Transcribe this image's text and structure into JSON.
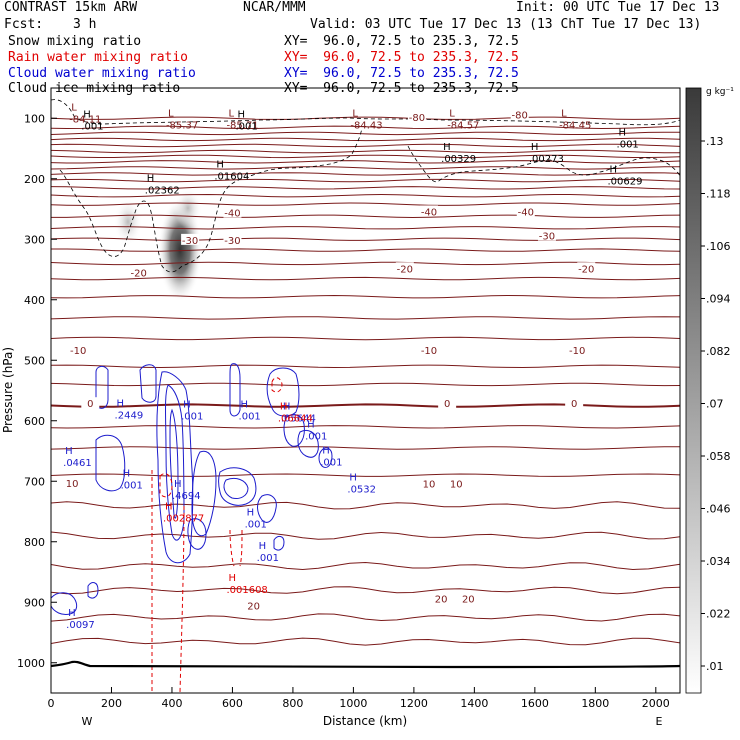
{
  "header": {
    "left_title": "CONTRAST 15km ARW",
    "center_title": "NCAR/MMM",
    "init": "Init: 00 UTC Tue 17 Dec 13",
    "fcst_label": "Fcst:",
    "fcst_value": "3 h",
    "valid": "Valid: 03 UTC Tue 17 Dec 13 (13 ChT Tue 17 Dec 13)",
    "fields": [
      {
        "name": "Snow mixing ratio",
        "xy": "XY=  96.0, 72.5 to 235.3, 72.5",
        "color": "#000000"
      },
      {
        "name": "Rain water mixing ratio",
        "xy": "XY=  96.0, 72.5 to 235.3, 72.5",
        "color": "#e00000"
      },
      {
        "name": "Cloud water mixing ratio",
        "xy": "XY=  96.0, 72.5 to 235.3, 72.5",
        "color": "#0000d0"
      },
      {
        "name": "Cloud ice mixing ratio",
        "xy": "XY=  96.0, 72.5 to 235.3, 72.5",
        "color": "#000000"
      }
    ]
  },
  "chart_data": {
    "type": "contour",
    "xlabel": "Distance (km)",
    "ylabel": "Pressure (hPa)",
    "xlim": [
      0,
      2080
    ],
    "ylim": [
      1050,
      50
    ],
    "x_ticks": [
      0,
      200,
      400,
      600,
      800,
      1000,
      1200,
      1400,
      1600,
      1800,
      2000
    ],
    "y_ticks": [
      100,
      200,
      300,
      400,
      500,
      600,
      700,
      800,
      900,
      1000
    ],
    "x_end_labels": {
      "left": "W",
      "right": "E"
    },
    "colorbar": {
      "unit": "g kg⁻¹",
      "ticks": [
        ".13",
        ".118",
        ".106",
        ".094",
        ".082",
        ".07",
        ".058",
        ".046",
        ".034",
        ".022",
        ".01"
      ]
    },
    "temperature_contours": [
      {
        "label": "-80",
        "positions": [
          [
            1210,
            98
          ],
          [
            1550,
            94
          ]
        ]
      },
      {
        "label": "-40",
        "positions": [
          [
            600,
            256
          ],
          [
            1250,
            254
          ],
          [
            1570,
            254
          ]
        ]
      },
      {
        "label": "-30",
        "positions": [
          [
            460,
            301
          ],
          [
            600,
            301
          ],
          [
            1640,
            294
          ]
        ]
      },
      {
        "label": "-20",
        "positions": [
          [
            290,
            355
          ],
          [
            1170,
            348
          ],
          [
            1770,
            348
          ]
        ]
      },
      {
        "label": "-10",
        "positions": [
          [
            90,
            483
          ],
          [
            1250,
            483
          ],
          [
            1740,
            483
          ]
        ]
      },
      {
        "label": "0",
        "positions": [
          [
            130,
            571
          ],
          [
            1310,
            571
          ],
          [
            1730,
            571
          ]
        ]
      },
      {
        "label": "10",
        "positions": [
          [
            70,
            703
          ],
          [
            1250,
            704
          ],
          [
            1340,
            704
          ]
        ]
      },
      {
        "label": "20",
        "positions": [
          [
            670,
            905
          ],
          [
            1290,
            894
          ],
          [
            1380,
            894
          ]
        ]
      }
    ],
    "min_labels": [
      {
        "label": "L",
        "value": "-84.11",
        "x": 80,
        "p": 100
      },
      {
        "label": "L",
        "value": "-85.37",
        "x": 400,
        "p": 110
      },
      {
        "label": "L",
        "value": "-85.71",
        "x": 600,
        "p": 110
      },
      {
        "label": "L",
        "value": "-84.43",
        "x": 1010,
        "p": 110
      },
      {
        "label": "L",
        "value": "-84.57",
        "x": 1330,
        "p": 110
      },
      {
        "label": "L",
        "value": "-84.45",
        "x": 1700,
        "p": 110
      }
    ],
    "cloud_ice_max": [
      {
        "label": "H",
        "value": ".001",
        "x": 120,
        "p": 112
      },
      {
        "label": "H",
        "value": ".001",
        "x": 630,
        "p": 112
      },
      {
        "label": "H",
        "value": ".02362",
        "x": 330,
        "p": 218
      },
      {
        "label": "H",
        "value": ".01604",
        "x": 560,
        "p": 195
      },
      {
        "label": "H",
        "value": ".00329",
        "x": 1310,
        "p": 166
      },
      {
        "label": "H",
        "value": ".00273",
        "x": 1600,
        "p": 166
      },
      {
        "label": "H",
        "value": ".001",
        "x": 1890,
        "p": 142
      },
      {
        "label": "H",
        "value": ".00629",
        "x": 1860,
        "p": 203
      }
    ],
    "cloud_water_max": [
      {
        "label": "H",
        "value": ".2449",
        "x": 230,
        "p": 590
      },
      {
        "label": "H",
        "value": ".001",
        "x": 450,
        "p": 591
      },
      {
        "label": "H",
        "value": ".001",
        "x": 640,
        "p": 591
      },
      {
        "label": "H",
        "value": ".05644",
        "x": 780,
        "p": 595
      },
      {
        "label": "H",
        "value": ".001",
        "x": 860,
        "p": 624
      },
      {
        "label": "H",
        "value": ".001",
        "x": 910,
        "p": 667
      },
      {
        "label": "H",
        "value": ".0461",
        "x": 60,
        "p": 668
      },
      {
        "label": "H",
        "value": ".001",
        "x": 250,
        "p": 705
      },
      {
        "label": "H",
        "value": ".0532",
        "x": 1000,
        "p": 712
      },
      {
        "label": "H",
        "value": ".4694",
        "x": 420,
        "p": 723
      },
      {
        "label": "H",
        "value": ".001",
        "x": 660,
        "p": 770
      },
      {
        "label": "H",
        "value": ".001",
        "x": 700,
        "p": 825
      },
      {
        "label": "H",
        "value": ".0097",
        "x": 70,
        "p": 936
      }
    ],
    "rain_water_max": [
      {
        "label": "H",
        "value": ".06644",
        "x": 770,
        "p": 595
      },
      {
        "label": "H",
        "value": ".002877",
        "x": 390,
        "p": 760
      },
      {
        "label": "H",
        "value": ".001608",
        "x": 600,
        "p": 878
      }
    ]
  }
}
